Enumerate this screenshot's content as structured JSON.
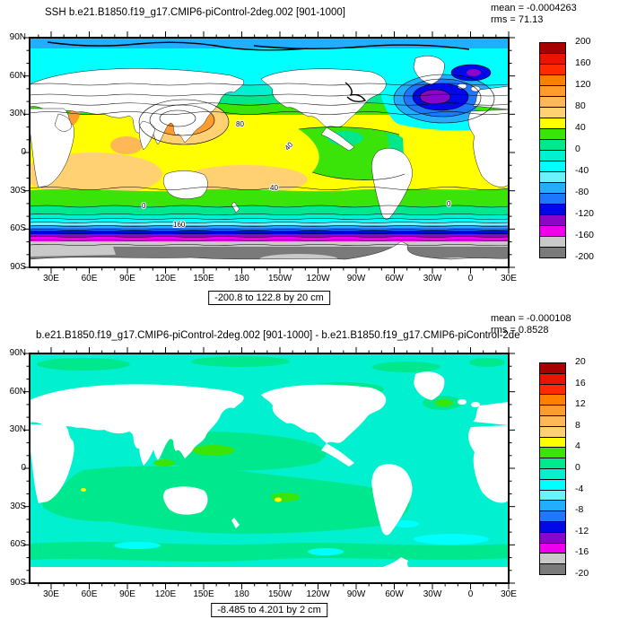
{
  "top_panel": {
    "title": "SSH b.e21.B1850.f19_g17.CMIP6-piControl-2deg.002 [901-1000]",
    "mean": "mean = -0.0004263",
    "rms": "rms = 71.13",
    "range": "-200.8 to 122.8 by 20 cm",
    "colorbar_labels": [
      "200",
      "160",
      "120",
      "80",
      "40",
      "0",
      "-40",
      "-80",
      "-120",
      "-160",
      "-200"
    ]
  },
  "bottom_panel": {
    "title": "b.e21.B1850.f19_g17.CMIP6-piControl-2deg.002 [901-1000] - b.e21.B1850.f19_g17.CMIP6-piControl-2de",
    "mean": "mean = -0.000108",
    "rms": "rms = 0.8528",
    "range": "-8.485 to 4.201 by 2 cm",
    "colorbar_labels": [
      "20",
      "16",
      "12",
      "8",
      "4",
      "0",
      "-4",
      "-8",
      "-12",
      "-16",
      "-20"
    ]
  },
  "axes": {
    "lat_labels": [
      "90N",
      "60N",
      "30N",
      "0",
      "30S",
      "60S",
      "90S"
    ],
    "lon_labels": [
      "30E",
      "60E",
      "90E",
      "120E",
      "150E",
      "180",
      "150W",
      "120W",
      "90W",
      "60W",
      "30W",
      "0",
      "30E"
    ]
  },
  "palette": [
    "#A60000",
    "#E81400",
    "#FF2A00",
    "#FF8000",
    "#FF9C2B",
    "#FFB858",
    "#FFD173",
    "#FFFF00",
    "#3BE408",
    "#00E88E",
    "#00F0D0",
    "#00FFFF",
    "#6BF2FF",
    "#22AEFF",
    "#1E78FF",
    "#0008E8",
    "#8A06C8",
    "#EE00EE",
    "#C9C9C9",
    "#7A7A7A"
  ],
  "contour_line_labels": [
    "80",
    "40",
    "40",
    "0",
    "0",
    "160"
  ],
  "chart_data": [
    {
      "type": "heatmap",
      "subtype": "filled-contour-world-map",
      "title": "SSH b.e21.B1850.f19_g17.CMIP6-piControl-2deg.002 [901-1000]",
      "variable": "SSH",
      "units": "cm",
      "mean": -0.0004263,
      "rms": 71.13,
      "data_min": -200.8,
      "data_max": 122.8,
      "contour_interval_cm": 20,
      "colorbar_ticks": [
        200,
        160,
        120,
        80,
        40,
        0,
        -40,
        -80,
        -120,
        -160,
        -200
      ],
      "lon_ticks": [
        "30E",
        "60E",
        "90E",
        "120E",
        "150E",
        "180",
        "150W",
        "120W",
        "90W",
        "60W",
        "30W",
        "0",
        "30E"
      ],
      "lat_ticks": [
        "90N",
        "60N",
        "30N",
        "0",
        "30S",
        "60S",
        "90S"
      ],
      "grid": false,
      "legend_position": "right-colorbar",
      "features": [
        {
          "region": "Subtropical NW Pacific (Philippine Sea / Kuroshio)",
          "approx_value_cm": 100
        },
        {
          "region": "Subtropical gyres Pacific/Indian/Atlantic",
          "approx_value_cm": 50
        },
        {
          "region": "Eastern equatorial Pacific tongue",
          "approx_value_cm": 25
        },
        {
          "region": "Subpolar North Atlantic gyre core",
          "approx_value_cm": -130
        },
        {
          "region": "Arctic Ocean",
          "approx_value_cm": -40
        },
        {
          "region": "Circumpolar band 45S-62S",
          "approx_value_cm": "strong gradient -20 to -160"
        },
        {
          "region": "Antarctic coastal seas",
          "approx_value_cm": -200
        }
      ]
    },
    {
      "type": "heatmap",
      "subtype": "filled-contour-world-map-difference",
      "title": "b.e21.B1850.f19_g17.CMIP6-piControl-2deg.002 [901-1000] minus b.e21.B1850.f19_g17.CMIP6-piControl-2deg",
      "variable": "SSH difference",
      "units": "cm",
      "mean": -0.000108,
      "rms": 0.8528,
      "data_min": -8.485,
      "data_max": 4.201,
      "contour_interval_cm": 2,
      "colorbar_ticks": [
        20,
        16,
        12,
        8,
        4,
        0,
        -4,
        -8,
        -12,
        -16,
        -20
      ],
      "lon_ticks": [
        "30E",
        "60E",
        "90E",
        "120E",
        "150E",
        "180",
        "150W",
        "120W",
        "90W",
        "60W",
        "30W",
        "0",
        "30E"
      ],
      "lat_ticks": [
        "90N",
        "60N",
        "30N",
        "0",
        "30S",
        "60S",
        "90S"
      ],
      "grid": false,
      "legend_position": "right-colorbar",
      "features": [
        {
          "region": "Most of global ocean",
          "approx_value_cm": "-2 to +2"
        },
        {
          "region": "Kuroshio extension and spots SE of Greenland",
          "approx_value_cm": "+2 to +4"
        },
        {
          "region": "Atlantic basin and Southern Ocean streaks",
          "approx_value_cm": "-4 to 0"
        }
      ]
    }
  ]
}
